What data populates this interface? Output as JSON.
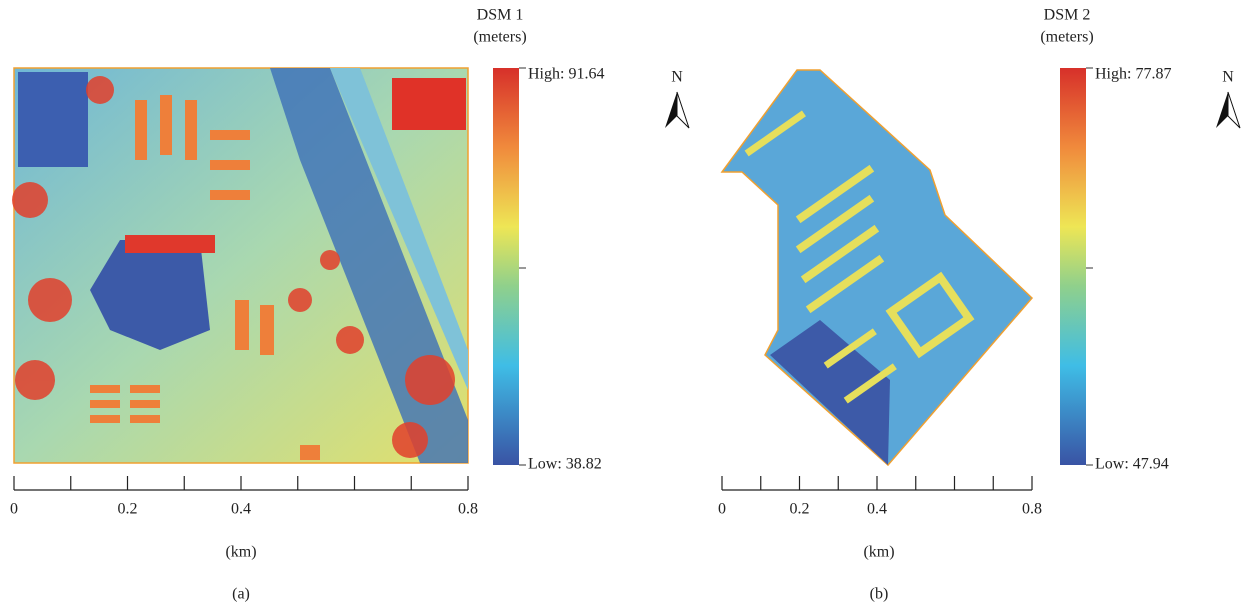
{
  "panels": [
    {
      "legend_title": "DSM 1",
      "legend_unit": "(meters)",
      "high_label": "High: 91.64",
      "low_label": "Low: 38.82",
      "north": "N",
      "scale_bar": {
        "xlim": [
          0,
          0.8
        ],
        "ticks": [
          0,
          0.1,
          0.2,
          0.3,
          0.4,
          0.5,
          0.6,
          0.7,
          0.8
        ],
        "labels": [
          0,
          0.2,
          0.4,
          0.8
        ]
      },
      "unit_label": "(km)",
      "caption": "(a)"
    },
    {
      "legend_title": "DSM 2",
      "legend_unit": "(meters)",
      "high_label": "High: 77.87",
      "low_label": "Low: 47.94",
      "north": "N",
      "scale_bar": {
        "xlim": [
          0,
          0.8
        ],
        "ticks": [
          0,
          0.1,
          0.2,
          0.3,
          0.4,
          0.5,
          0.6,
          0.7,
          0.8
        ],
        "labels": [
          0,
          0.2,
          0.4,
          0.8
        ]
      },
      "unit_label": "(km)",
      "caption": "(b)"
    }
  ]
}
